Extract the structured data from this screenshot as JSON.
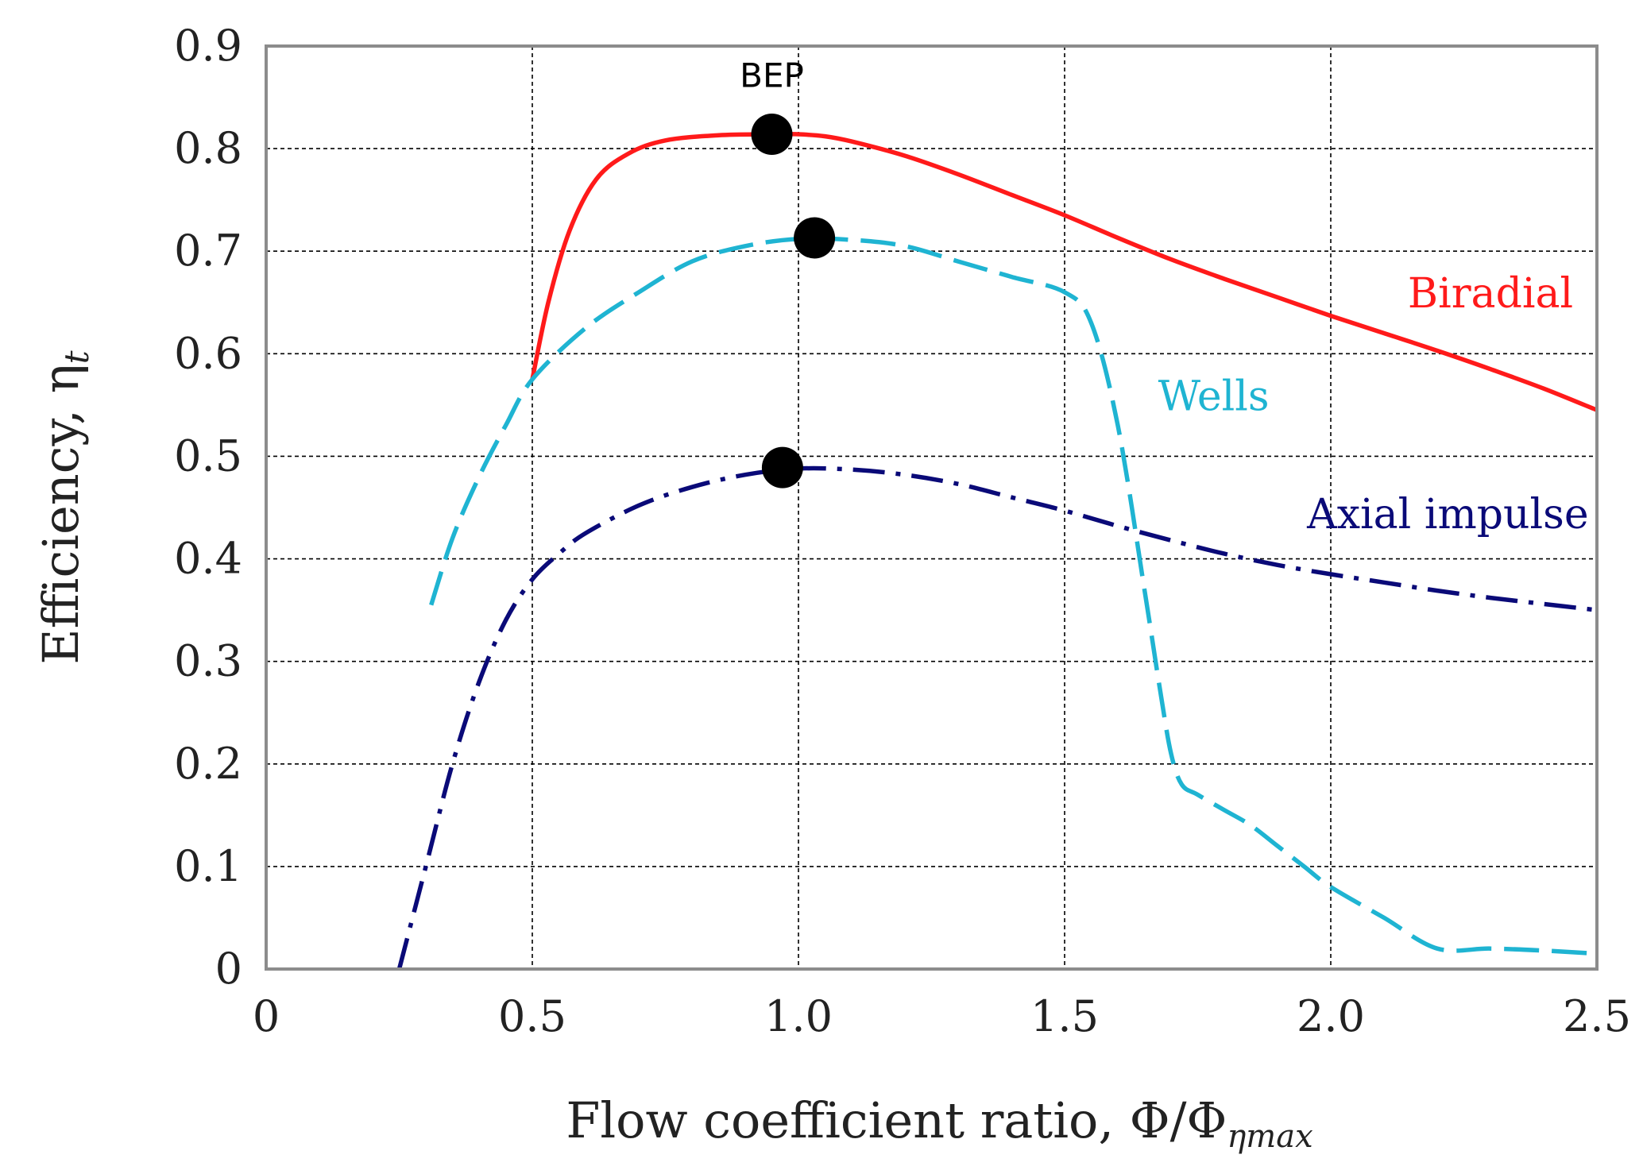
{
  "chart_data": {
    "type": "line",
    "title": "",
    "xlabel": "Flow coefficient ratio, Φ/Φ",
    "xlabel_subscript": "ηmax",
    "ylabel": "Efficiency, η",
    "ylabel_subscript": "t",
    "xlim": [
      0,
      2.5
    ],
    "ylim": [
      0,
      0.9
    ],
    "x_ticks": [
      0,
      0.5,
      1.0,
      1.5,
      2.0,
      2.5
    ],
    "x_tick_labels": [
      "0",
      "0.5",
      "1.0",
      "1.5",
      "2.0",
      "2.5"
    ],
    "y_ticks": [
      0,
      0.1,
      0.2,
      0.3,
      0.4,
      0.5,
      0.6,
      0.7,
      0.8,
      0.9
    ],
    "y_tick_labels": [
      "0",
      "0.1",
      "0.2",
      "0.3",
      "0.4",
      "0.5",
      "0.6",
      "0.7",
      "0.8",
      "0.9"
    ],
    "grid": true,
    "series": [
      {
        "name": "Biradial",
        "label": "Biradial",
        "color": "#ff1a1a",
        "style": "solid",
        "x": [
          0.5,
          0.53,
          0.57,
          0.62,
          0.68,
          0.75,
          0.85,
          0.95,
          1.0,
          1.05,
          1.1,
          1.2,
          1.3,
          1.4,
          1.5,
          1.6,
          1.7,
          1.8,
          1.9,
          2.0,
          2.1,
          2.2,
          2.3,
          2.4,
          2.5
        ],
        "y": [
          0.575,
          0.65,
          0.72,
          0.77,
          0.795,
          0.808,
          0.813,
          0.814,
          0.814,
          0.812,
          0.807,
          0.793,
          0.775,
          0.755,
          0.735,
          0.713,
          0.692,
          0.673,
          0.655,
          0.637,
          0.62,
          0.603,
          0.585,
          0.566,
          0.545
        ],
        "label_position": [
          2.3,
          0.645
        ]
      },
      {
        "name": "Wells",
        "label": "Wells",
        "color": "#1fb4d2",
        "style": "dashed",
        "x": [
          0.31,
          0.35,
          0.4,
          0.45,
          0.5,
          0.6,
          0.7,
          0.8,
          0.9,
          1.0,
          1.1,
          1.2,
          1.3,
          1.4,
          1.5,
          1.55,
          1.6,
          1.65,
          1.68,
          1.7,
          1.72,
          1.75,
          1.8,
          1.85,
          1.9,
          1.95,
          2.0,
          2.1,
          2.2,
          2.3,
          2.4,
          2.5
        ],
        "y": [
          0.355,
          0.42,
          0.48,
          0.53,
          0.575,
          0.625,
          0.66,
          0.69,
          0.705,
          0.712,
          0.711,
          0.705,
          0.69,
          0.675,
          0.66,
          0.63,
          0.53,
          0.37,
          0.27,
          0.21,
          0.18,
          0.17,
          0.155,
          0.14,
          0.12,
          0.1,
          0.08,
          0.05,
          0.02,
          0.02,
          0.018,
          0.015
        ],
        "label_position": [
          1.78,
          0.545
        ]
      },
      {
        "name": "Axial impulse",
        "label": "Axial impulse",
        "color": "#0a0a78",
        "style": "dashdot",
        "x": [
          0.25,
          0.3,
          0.35,
          0.4,
          0.45,
          0.5,
          0.55,
          0.6,
          0.7,
          0.8,
          0.9,
          1.0,
          1.1,
          1.2,
          1.3,
          1.4,
          1.5,
          1.6,
          1.7,
          1.8,
          1.9,
          2.0,
          2.1,
          2.2,
          2.3,
          2.4,
          2.5
        ],
        "y": [
          0.0,
          0.1,
          0.2,
          0.28,
          0.34,
          0.38,
          0.405,
          0.425,
          0.452,
          0.47,
          0.482,
          0.488,
          0.487,
          0.482,
          0.473,
          0.46,
          0.447,
          0.432,
          0.418,
          0.405,
          0.394,
          0.385,
          0.377,
          0.369,
          0.362,
          0.356,
          0.35
        ],
        "label_position": [
          2.22,
          0.43
        ]
      }
    ],
    "bep_points": [
      {
        "series": "Biradial",
        "x": 0.95,
        "y": 0.814
      },
      {
        "series": "Wells",
        "x": 1.03,
        "y": 0.713
      },
      {
        "series": "Axial impulse",
        "x": 0.97,
        "y": 0.489
      }
    ],
    "annotations": [
      {
        "text": "BEP",
        "x": 0.95,
        "y": 0.86
      }
    ]
  }
}
